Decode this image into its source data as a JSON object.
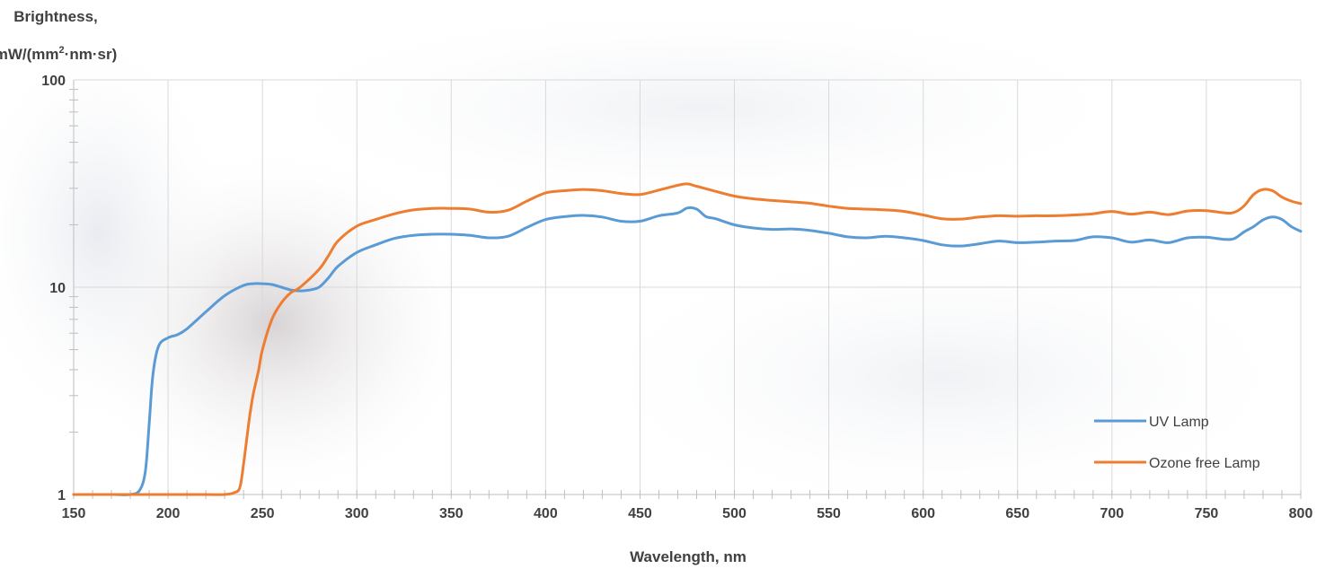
{
  "chart_data": {
    "type": "line",
    "ylabel_line1": "Brightness,",
    "ylabel_line2_prefix": "mW/(mm",
    "ylabel_line2_sup": "2",
    "ylabel_line2_suffix": "·nm·sr)",
    "xlabel": "Wavelength, nm",
    "xlim": [
      150,
      800
    ],
    "ylim": [
      1,
      100
    ],
    "yscale": "log",
    "x_ticks": [
      "150",
      "200",
      "250",
      "300",
      "350",
      "400",
      "450",
      "500",
      "550",
      "600",
      "650",
      "700",
      "750",
      "800"
    ],
    "y_ticks": [
      "1",
      "10",
      "100"
    ],
    "grid": "major gridlines",
    "legend_position": "bottom-right",
    "series": [
      {
        "name": "UV Lamp",
        "color": "#5B9BD5",
        "x": [
          150,
          170,
          180,
          185,
          188,
          190,
          192,
          195,
          200,
          205,
          210,
          220,
          230,
          240,
          245,
          250,
          255,
          260,
          265,
          270,
          275,
          280,
          285,
          290,
          300,
          310,
          320,
          330,
          340,
          350,
          360,
          370,
          380,
          390,
          400,
          410,
          420,
          430,
          440,
          450,
          460,
          470,
          475,
          480,
          485,
          490,
          500,
          510,
          520,
          530,
          540,
          550,
          560,
          570,
          580,
          590,
          600,
          610,
          620,
          630,
          640,
          650,
          660,
          670,
          680,
          690,
          700,
          710,
          720,
          730,
          740,
          750,
          760,
          765,
          770,
          775,
          780,
          785,
          790,
          795,
          800
        ],
        "y": [
          1,
          1,
          1,
          1.05,
          1.3,
          2.2,
          3.8,
          5.2,
          5.7,
          5.9,
          6.3,
          7.6,
          9.1,
          10.2,
          10.4,
          10.4,
          10.3,
          10.0,
          9.7,
          9.6,
          9.7,
          10.0,
          11.1,
          12.6,
          14.7,
          16.0,
          17.2,
          17.8,
          18.0,
          18.0,
          17.8,
          17.3,
          17.6,
          19.4,
          21.2,
          21.9,
          22.2,
          21.8,
          20.8,
          20.8,
          22.1,
          22.8,
          24.1,
          23.8,
          21.9,
          21.4,
          20.0,
          19.3,
          19.0,
          19.1,
          18.8,
          18.2,
          17.5,
          17.3,
          17.6,
          17.3,
          16.8,
          16.0,
          15.8,
          16.2,
          16.7,
          16.4,
          16.5,
          16.7,
          16.8,
          17.5,
          17.3,
          16.5,
          16.9,
          16.4,
          17.3,
          17.4,
          17.0,
          17.2,
          18.5,
          19.6,
          21.1,
          21.8,
          21.2,
          19.6,
          18.6
        ]
      },
      {
        "name": "Ozone free Lamp",
        "color": "#ED7D31",
        "x": [
          150,
          170,
          200,
          220,
          230,
          235,
          238,
          240,
          243,
          245,
          248,
          250,
          255,
          260,
          265,
          270,
          280,
          285,
          290,
          300,
          310,
          320,
          330,
          340,
          350,
          360,
          370,
          380,
          390,
          400,
          410,
          420,
          430,
          440,
          450,
          460,
          470,
          475,
          480,
          490,
          500,
          510,
          520,
          530,
          540,
          550,
          560,
          570,
          580,
          590,
          600,
          610,
          620,
          630,
          640,
          650,
          660,
          670,
          680,
          690,
          700,
          710,
          720,
          730,
          740,
          750,
          760,
          765,
          770,
          775,
          780,
          785,
          790,
          795,
          800
        ],
        "y": [
          1,
          1,
          1,
          1,
          1,
          1.02,
          1.08,
          1.4,
          2.3,
          3.0,
          4.0,
          5.0,
          7.0,
          8.4,
          9.4,
          10.0,
          12.2,
          14.2,
          16.7,
          19.7,
          21.2,
          22.6,
          23.6,
          24.0,
          24.0,
          23.8,
          23.0,
          23.5,
          26.0,
          28.5,
          29.2,
          29.6,
          29.2,
          28.3,
          28.0,
          29.4,
          31.0,
          31.5,
          30.7,
          29.0,
          27.5,
          26.7,
          26.2,
          25.8,
          25.4,
          24.6,
          24.0,
          23.8,
          23.6,
          23.2,
          22.3,
          21.4,
          21.3,
          21.8,
          22.1,
          22.0,
          22.1,
          22.1,
          22.3,
          22.6,
          23.2,
          22.5,
          23.0,
          22.4,
          23.3,
          23.4,
          22.8,
          23.0,
          24.7,
          28.0,
          29.6,
          29.2,
          27.2,
          26.0,
          25.3
        ]
      }
    ]
  }
}
